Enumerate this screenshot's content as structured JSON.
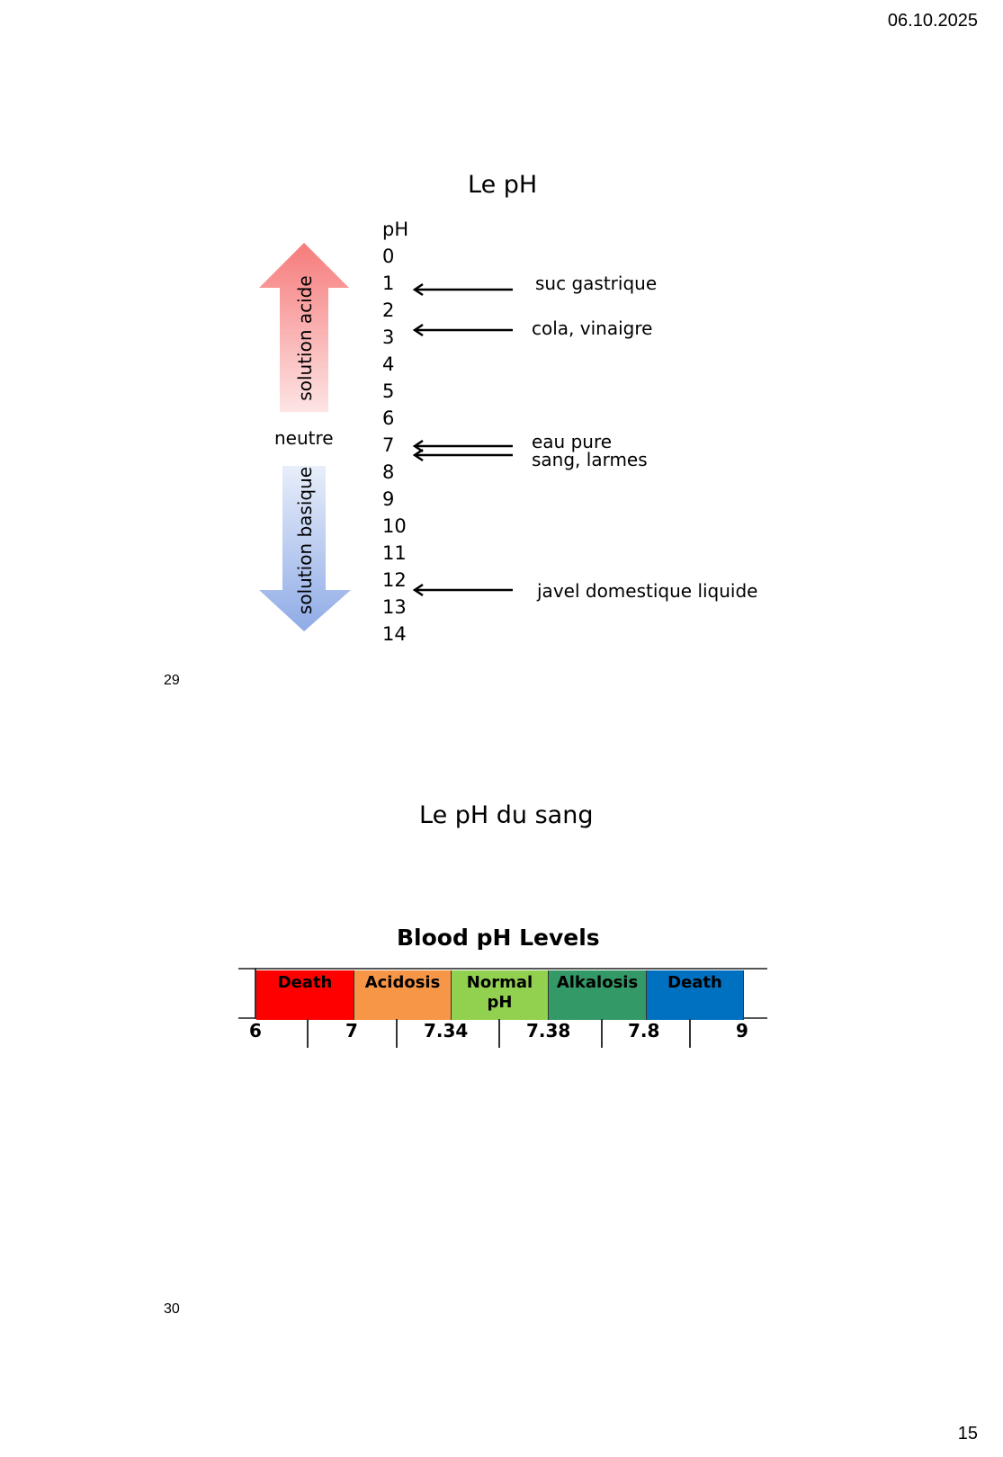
{
  "header": {
    "date": "06.10.2025"
  },
  "footer": {
    "page_number": "15"
  },
  "slide29": {
    "number": "29",
    "title": "Le pH",
    "scale_header": "pH",
    "scale": [
      "0",
      "1",
      "2",
      "3",
      "4",
      "5",
      "6",
      "7",
      "8",
      "9",
      "10",
      "11",
      "12",
      "13",
      "14"
    ],
    "acid_label": "solution acide",
    "neutral_label": "neutre",
    "basic_label": "solution basique",
    "annotations": [
      {
        "text": "suc gastrique",
        "ph": 1
      },
      {
        "text": "cola, vinaigre",
        "ph": 3
      },
      {
        "text": "eau pure",
        "ph": 7
      },
      {
        "text": "sang, larmes",
        "ph": 7.4
      },
      {
        "text": "javel domestique liquide",
        "ph": 12
      }
    ],
    "colors": {
      "acid": "#f67b7b",
      "basic": "#9db6ea"
    }
  },
  "slide30": {
    "number": "30",
    "title": "Le pH du sang",
    "chart": {
      "title": "Blood pH Levels",
      "bands": [
        {
          "label": "Death",
          "color": "#ff0000"
        },
        {
          "label": "Acidosis",
          "color": "#f79646"
        },
        {
          "label": "Normal pH",
          "color": "#92d050"
        },
        {
          "label": "Alkalosis",
          "color": "#339966"
        },
        {
          "label": "Death",
          "color": "#0070c0"
        }
      ],
      "ticks": [
        "6",
        "7",
        "7.34",
        "7.38",
        "7.8",
        "9"
      ]
    }
  }
}
